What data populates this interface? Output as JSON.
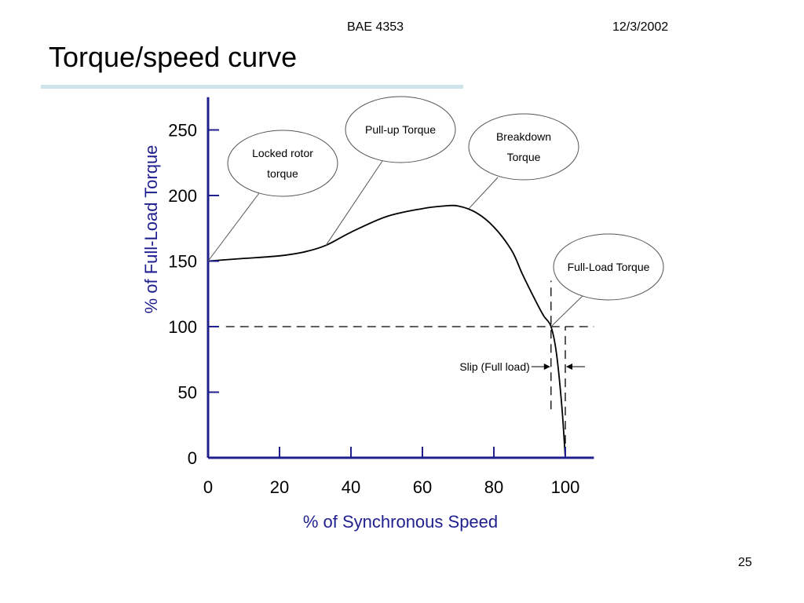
{
  "header": {
    "course": "BAE 4353",
    "date": "12/3/2002"
  },
  "slide": {
    "title": "Torque/speed curve",
    "page_number": "25"
  },
  "colors": {
    "axis": "#1f1f8f",
    "curve": "#000000",
    "title_rule": "#cfe3ea"
  },
  "chart_data": {
    "type": "line",
    "title": "",
    "xlabel": "% of Synchronous Speed",
    "ylabel": "% of Full-Load Torque",
    "xlim": [
      0,
      108
    ],
    "ylim": [
      0,
      275
    ],
    "x_ticks": [
      "0",
      "20",
      "40",
      "60",
      "80",
      "100"
    ],
    "y_ticks": [
      "0",
      "50",
      "100",
      "150",
      "200",
      "250"
    ],
    "grid": false,
    "series": [
      {
        "x": [
          0,
          10,
          20,
          27,
          33,
          40,
          50,
          60,
          66,
          70,
          75,
          80,
          85,
          88,
          92,
          94,
          96,
          97.5,
          99,
          100
        ],
        "y": [
          150,
          152,
          154,
          157,
          162,
          172,
          184,
          190,
          192,
          192,
          187,
          176,
          158,
          140,
          118,
          108,
          100,
          80,
          40,
          0
        ]
      }
    ],
    "reference_lines": [
      {
        "orientation": "horizontal",
        "y": 100,
        "x_range": [
          5,
          108
        ],
        "style": "dashed"
      },
      {
        "orientation": "vertical",
        "x": 96,
        "y_range": [
          37,
          135
        ],
        "style": "dashed"
      },
      {
        "orientation": "vertical",
        "x": 100,
        "y_range": [
          0,
          100
        ],
        "style": "dashed"
      }
    ],
    "annotations": [
      {
        "id": "locked",
        "lines": [
          "Locked rotor",
          "torque"
        ],
        "target": [
          0,
          150
        ]
      },
      {
        "id": "pullup",
        "lines": [
          "Pull-up Torque"
        ],
        "target": [
          33,
          162
        ]
      },
      {
        "id": "breakdown",
        "lines": [
          "Breakdown",
          "Torque"
        ],
        "target": [
          73,
          190
        ]
      },
      {
        "id": "fullload",
        "lines": [
          "Full-Load Torque"
        ],
        "target": [
          96,
          100
        ]
      },
      {
        "id": "slip",
        "lines": [
          "Slip (Full load)"
        ]
      }
    ]
  }
}
